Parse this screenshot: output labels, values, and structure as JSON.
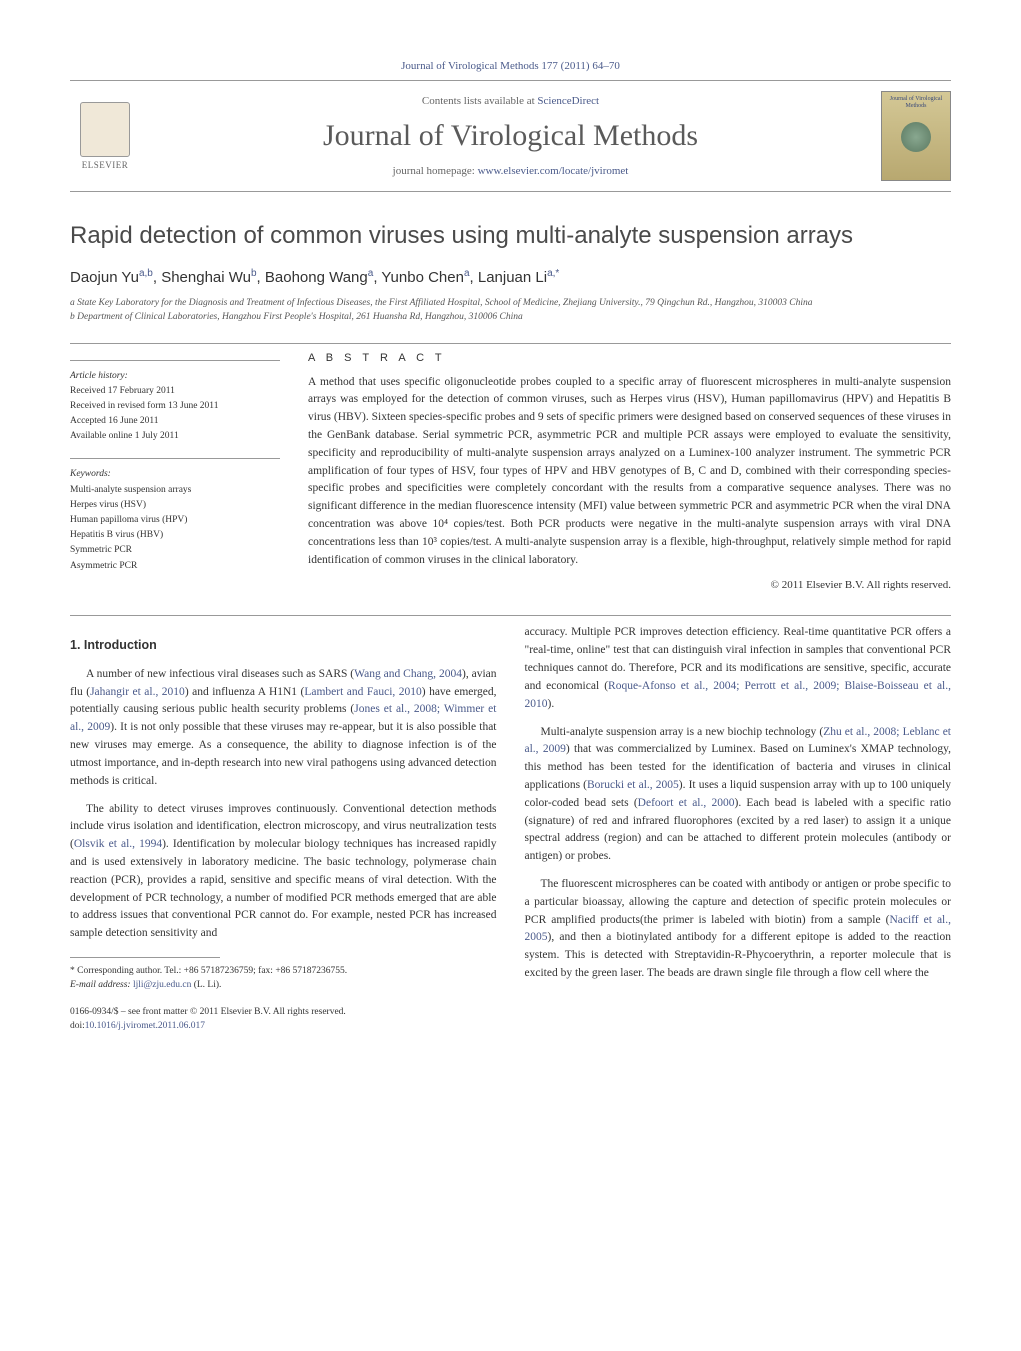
{
  "journal_ref": "Journal of Virological Methods 177 (2011) 64–70",
  "header": {
    "contents_prefix": "Contents lists available at ",
    "contents_link": "ScienceDirect",
    "journal_title": "Journal of Virological Methods",
    "homepage_prefix": "journal homepage: ",
    "homepage_link": "www.elsevier.com/locate/jviromet",
    "publisher": "ELSEVIER",
    "cover_title": "Journal of Virological Methods"
  },
  "article": {
    "title": "Rapid detection of common viruses using multi-analyte suspension arrays",
    "authors_html": "Daojun Yu<sup>a,b</sup>, Shenghai Wu<sup>b</sup>, Baohong Wang<sup>a</sup>, Yunbo Chen<sup>a</sup>, Lanjuan Li<sup>a,*</sup>",
    "affiliations": [
      "a State Key Laboratory for the Diagnosis and Treatment of Infectious Diseases, the First Affiliated Hospital, School of Medicine, Zhejiang University., 79 Qingchun Rd., Hangzhou, 310003 China",
      "b Department of Clinical Laboratories, Hangzhou First People's Hospital, 261 Huansha Rd, Hangzhou, 310006 China"
    ]
  },
  "meta": {
    "history_heading": "Article history:",
    "history": [
      "Received 17 February 2011",
      "Received in revised form 13 June 2011",
      "Accepted 16 June 2011",
      "Available online 1 July 2011"
    ],
    "keywords_heading": "Keywords:",
    "keywords": [
      "Multi-analyte suspension arrays",
      "Herpes virus (HSV)",
      "Human papilloma virus (HPV)",
      "Hepatitis B virus (HBV)",
      "Symmetric PCR",
      "Asymmetric PCR"
    ]
  },
  "abstract": {
    "heading": "A B S T R A C T",
    "text": "A method that uses specific oligonucleotide probes coupled to a specific array of fluorescent microspheres in multi-analyte suspension arrays was employed for the detection of common viruses, such as Herpes virus (HSV), Human papillomavirus (HPV) and Hepatitis B virus (HBV). Sixteen species-specific probes and 9 sets of specific primers were designed based on conserved sequences of these viruses in the GenBank database. Serial symmetric PCR, asymmetric PCR and multiple PCR assays were employed to evaluate the sensitivity, specificity and reproducibility of multi-analyte suspension arrays analyzed on a Luminex-100 analyzer instrument. The symmetric PCR amplification of four types of HSV, four types of HPV and HBV genotypes of B, C and D, combined with their corresponding species-specific probes and specificities were completely concordant with the results from a comparative sequence analyses. There was no significant difference in the median fluorescence intensity (MFI) value between symmetric PCR and asymmetric PCR when the viral DNA concentration was above 10⁴ copies/test. Both PCR products were negative in the multi-analyte suspension arrays with viral DNA concentrations less than 10³ copies/test. A multi-analyte suspension array is a flexible, high-throughput, relatively simple method for rapid identification of common viruses in the clinical laboratory.",
    "copyright": "© 2011 Elsevier B.V. All rights reserved."
  },
  "sections": {
    "intro_heading": "1. Introduction",
    "paragraphs": [
      "A number of new infectious viral diseases such as SARS (<a>Wang and Chang, 2004</a>), avian flu (<a>Jahangir et al., 2010</a>) and influenza A H1N1 (<a>Lambert and Fauci, 2010</a>) have emerged, potentially causing serious public health security problems (<a>Jones et al., 2008; Wimmer et al., 2009</a>). It is not only possible that these viruses may re-appear, but it is also possible that new viruses may emerge. As a consequence, the ability to diagnose infection is of the utmost importance, and in-depth research into new viral pathogens using advanced detection methods is critical.",
      "The ability to detect viruses improves continuously. Conventional detection methods include virus isolation and identification, electron microscopy, and virus neutralization tests (<a>Olsvik et al., 1994</a>). Identification by molecular biology techniques has increased rapidly and is used extensively in laboratory medicine. The basic technology, polymerase chain reaction (PCR), provides a rapid, sensitive and specific means of viral detection. With the development of PCR technology, a number of modified PCR methods emerged that are able to address issues that conventional PCR cannot do. For example, nested PCR has increased sample detection sensitivity and",
      "accuracy. Multiple PCR improves detection efficiency. Real-time quantitative PCR offers a \"real-time, online\" test that can distinguish viral infection in samples that conventional PCR techniques cannot do. Therefore, PCR and its modifications are sensitive, specific, accurate and economical (<a>Roque-Afonso et al., 2004; Perrott et al., 2009; Blaise-Boisseau et al., 2010</a>).",
      "Multi-analyte suspension array is a new biochip technology (<a>Zhu et al., 2008; Leblanc et al., 2009</a>) that was commercialized by Luminex. Based on Luminex's XMAP technology, this method has been tested for the identification of bacteria and viruses in clinical applications (<a>Borucki et al., 2005</a>). It uses a liquid suspension array with up to 100 uniquely color-coded bead sets (<a>Defoort et al., 2000</a>). Each bead is labeled with a specific ratio (signature) of red and infrared fluorophores (excited by a red laser) to assign it a unique spectral address (region) and can be attached to different protein molecules (antibody or antigen) or probes.",
      "The fluorescent microspheres can be coated with antibody or antigen or probe specific to a particular bioassay, allowing the capture and detection of specific protein molecules or PCR amplified products(the primer is labeled with biotin) from a sample (<a>Naciff et al., 2005</a>), and then a biotinylated antibody for a different epitope is added to the reaction system. This is detected with Streptavidin-R-Phycoerythrin, a reporter molecule that is excited by the green laser. The beads are drawn single file through a flow cell where the"
    ]
  },
  "footnote": {
    "corr_label": "* Corresponding author. Tel.: +86 57187236759; fax: +86 57187236755.",
    "email_label": "E-mail address: ",
    "email": "ljli@zju.edu.cn",
    "email_suffix": " (L. Li)."
  },
  "bottom": {
    "issn_line": "0166-0934/$ – see front matter © 2011 Elsevier B.V. All rights reserved.",
    "doi_label": "doi:",
    "doi": "10.1016/j.jviromet.2011.06.017"
  },
  "colors": {
    "link": "#4a5a8a",
    "text": "#333333",
    "heading_gray": "#4a4a4a",
    "rule": "#999999"
  }
}
